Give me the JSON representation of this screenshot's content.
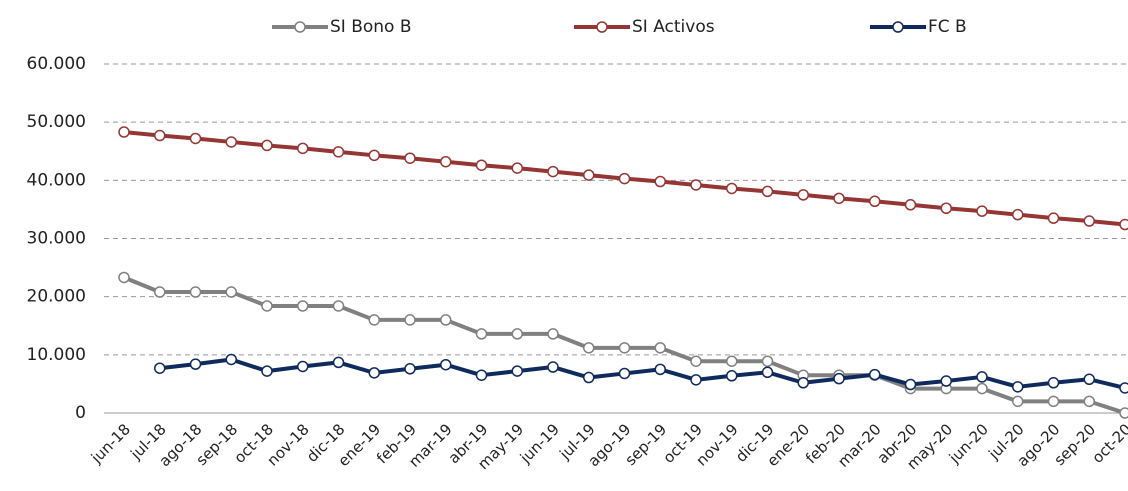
{
  "chart_data": {
    "type": "line",
    "categories": [
      "jun-18",
      "jul-18",
      "ago-18",
      "sep-18",
      "oct-18",
      "nov-18",
      "dic-18",
      "ene-19",
      "feb-19",
      "mar-19",
      "abr-19",
      "may-19",
      "jun-19",
      "jul-19",
      "ago-19",
      "sep-19",
      "oct-19",
      "nov-19",
      "dic-19",
      "ene-20",
      "feb-20",
      "mar-20",
      "abr-20",
      "may-20",
      "jun-20",
      "jul-20",
      "ago-20",
      "sep-20",
      "oct-20"
    ],
    "series": [
      {
        "name": "SI Bono B",
        "color": "#808080",
        "values": [
          23300,
          20800,
          20800,
          20800,
          18400,
          18400,
          18400,
          16000,
          16000,
          16000,
          13600,
          13600,
          13600,
          11200,
          11200,
          11200,
          8900,
          8900,
          8900,
          6500,
          6500,
          6500,
          4200,
          4200,
          4200,
          2000,
          2000,
          2000,
          0
        ]
      },
      {
        "name": "SI Activos",
        "color": "#943634",
        "values": [
          48300,
          47700,
          47200,
          46600,
          46000,
          45500,
          44900,
          44300,
          43800,
          43200,
          42600,
          42100,
          41500,
          40900,
          40300,
          39800,
          39200,
          38600,
          38100,
          37500,
          36900,
          36400,
          35800,
          35200,
          34700,
          34100,
          33500,
          33000,
          32400
        ]
      },
      {
        "name": "FC B",
        "color": "#0f2a5c",
        "values": [
          null,
          7700,
          8400,
          9200,
          7200,
          8000,
          8700,
          6900,
          7600,
          8300,
          6500,
          7200,
          7900,
          6100,
          6800,
          7500,
          5700,
          6400,
          7000,
          5200,
          5900,
          6600,
          4900,
          5500,
          6200,
          4500,
          5200,
          5800,
          4300
        ]
      }
    ],
    "ylim": [
      0,
      60000
    ],
    "yticks": [
      0,
      {
        "value": 10000,
        "label": "10.000"
      },
      {
        "value": 20000,
        "label": "20.000"
      },
      {
        "value": 30000,
        "label": "30.000"
      },
      {
        "value": 40000,
        "label": "40.000"
      },
      {
        "value": 50000,
        "label": "50.000"
      },
      {
        "value": 60000,
        "label": "60.000"
      }
    ],
    "grid": true,
    "legend": "top"
  }
}
